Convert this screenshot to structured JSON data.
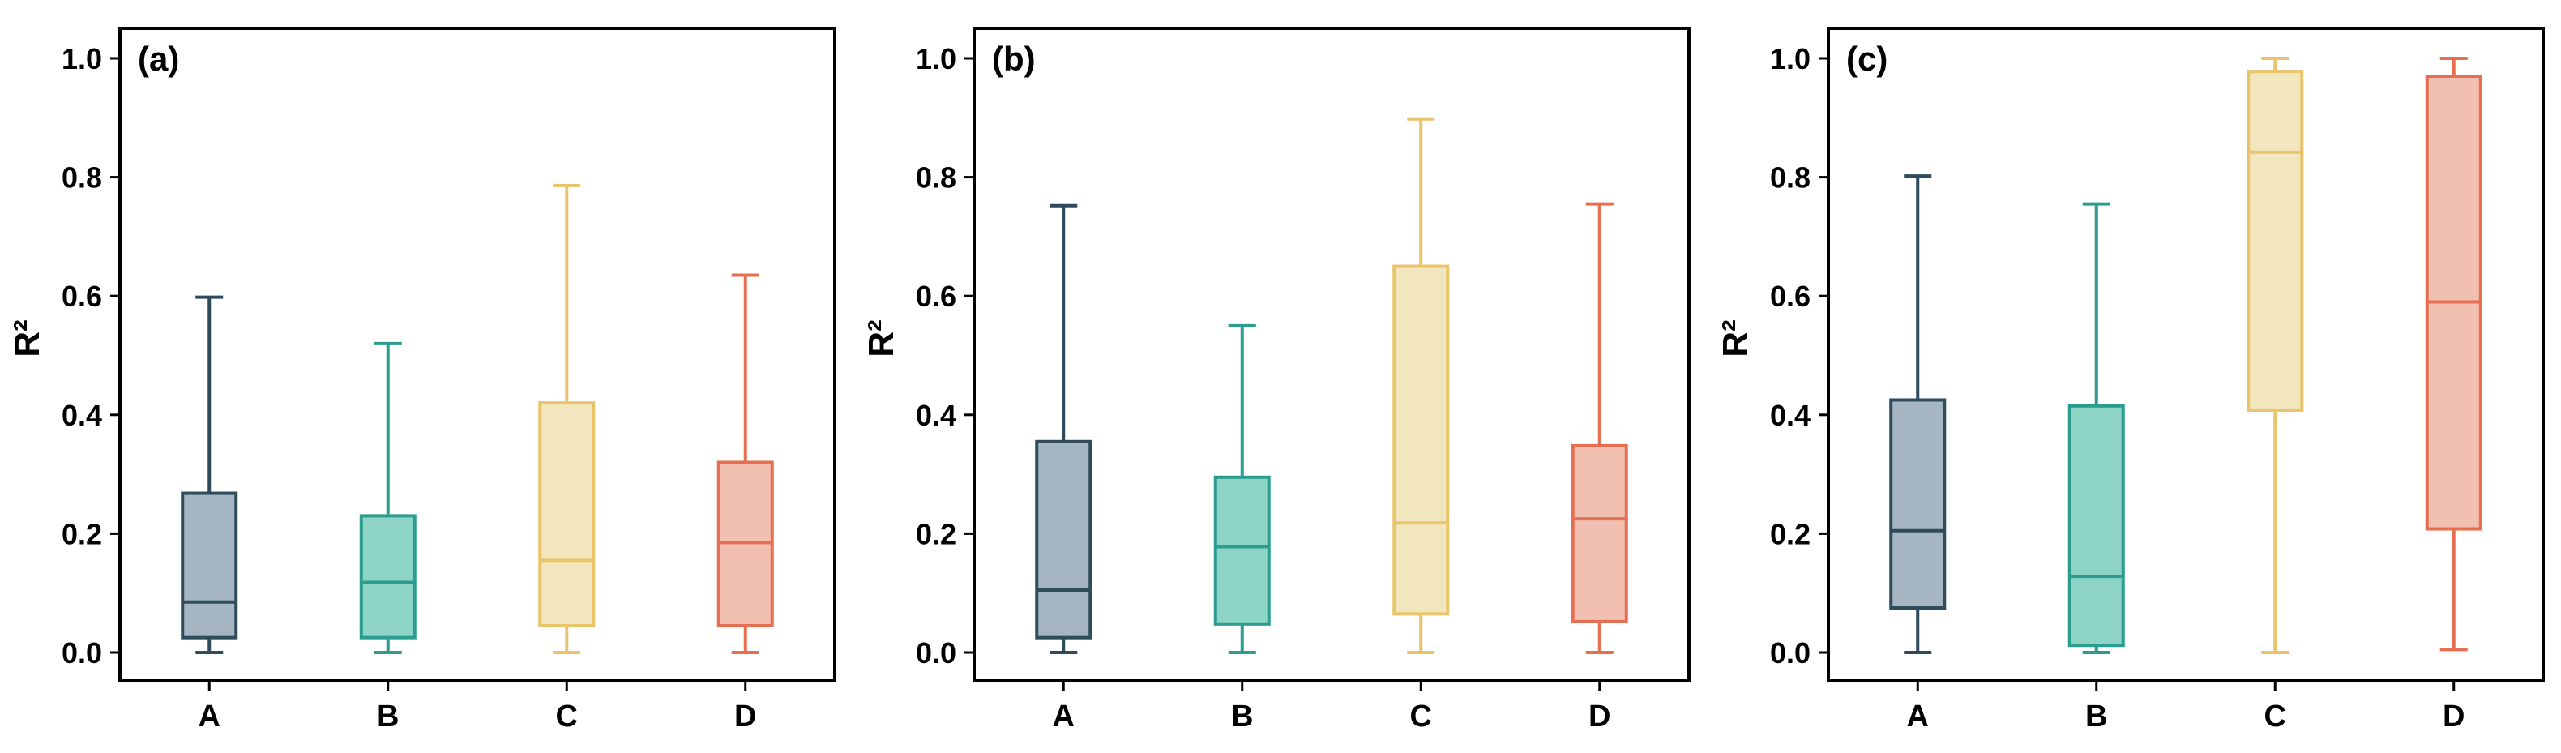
{
  "chart_data": [
    {
      "type": "box",
      "panel_label": "(a)",
      "ylabel": "R²",
      "xlabel": "",
      "ylim": [
        0,
        1.05
      ],
      "yticks": [
        "0.0",
        "0.2",
        "0.4",
        "0.6",
        "0.8",
        "1.0"
      ],
      "categories": [
        "A",
        "B",
        "C",
        "D"
      ],
      "colors": [
        "#2f4c5c",
        "#2a9d8f",
        "#e9c46a",
        "#e76f51"
      ],
      "fills": [
        "#a5b5c1",
        "#8dd4c6",
        "#f1e6bd",
        "#f2c0b0"
      ],
      "boxes": [
        {
          "min": 0.0,
          "q1": 0.025,
          "median": 0.085,
          "q3": 0.268,
          "max": 0.598
        },
        {
          "min": 0.0,
          "q1": 0.025,
          "median": 0.118,
          "q3": 0.23,
          "max": 0.52
        },
        {
          "min": 0.0,
          "q1": 0.045,
          "median": 0.155,
          "q3": 0.42,
          "max": 0.786
        },
        {
          "min": 0.0,
          "q1": 0.045,
          "median": 0.185,
          "q3": 0.32,
          "max": 0.635
        }
      ]
    },
    {
      "type": "box",
      "panel_label": "(b)",
      "ylabel": "R²",
      "xlabel": "",
      "ylim": [
        0,
        1.05
      ],
      "yticks": [
        "0.0",
        "0.2",
        "0.4",
        "0.6",
        "0.8",
        "1.0"
      ],
      "categories": [
        "A",
        "B",
        "C",
        "D"
      ],
      "colors": [
        "#2f4c5c",
        "#2a9d8f",
        "#e9c46a",
        "#e76f51"
      ],
      "fills": [
        "#a5b5c1",
        "#8dd4c6",
        "#f1e6bd",
        "#f2c0b0"
      ],
      "boxes": [
        {
          "min": 0.0,
          "q1": 0.025,
          "median": 0.105,
          "q3": 0.355,
          "max": 0.752
        },
        {
          "min": 0.0,
          "q1": 0.048,
          "median": 0.178,
          "q3": 0.295,
          "max": 0.55
        },
        {
          "min": 0.0,
          "q1": 0.065,
          "median": 0.218,
          "q3": 0.65,
          "max": 0.898
        },
        {
          "min": 0.0,
          "q1": 0.052,
          "median": 0.225,
          "q3": 0.348,
          "max": 0.755
        }
      ]
    },
    {
      "type": "box",
      "panel_label": "(c)",
      "ylabel": "R²",
      "xlabel": "",
      "ylim": [
        0,
        1.05
      ],
      "yticks": [
        "0.0",
        "0.2",
        "0.4",
        "0.6",
        "0.8",
        "1.0"
      ],
      "categories": [
        "A",
        "B",
        "C",
        "D"
      ],
      "colors": [
        "#2f4c5c",
        "#2a9d8f",
        "#e9c46a",
        "#e76f51"
      ],
      "fills": [
        "#a5b5c1",
        "#8dd4c6",
        "#f1e6bd",
        "#f2c0b0"
      ],
      "boxes": [
        {
          "min": 0.0,
          "q1": 0.075,
          "median": 0.205,
          "q3": 0.425,
          "max": 0.802
        },
        {
          "min": 0.0,
          "q1": 0.012,
          "median": 0.128,
          "q3": 0.415,
          "max": 0.755
        },
        {
          "min": 0.0,
          "q1": 0.408,
          "median": 0.842,
          "q3": 0.978,
          "max": 1.0
        },
        {
          "min": 0.005,
          "q1": 0.208,
          "median": 0.59,
          "q3": 0.97,
          "max": 1.0
        }
      ]
    }
  ]
}
